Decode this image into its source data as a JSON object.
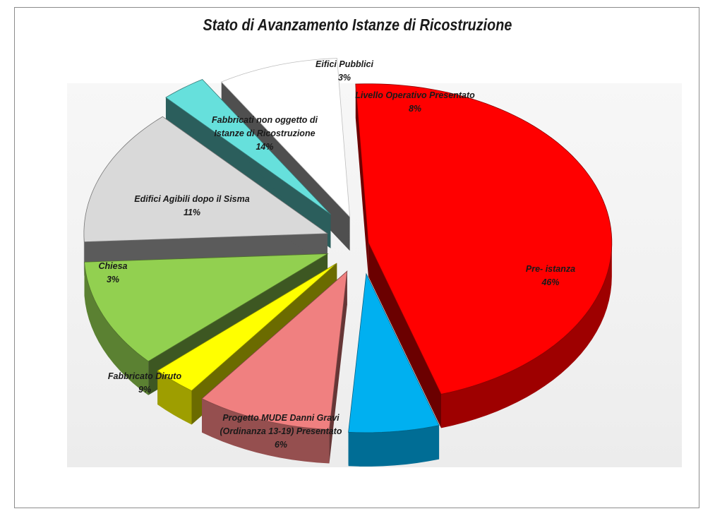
{
  "chart_data": {
    "type": "pie",
    "title": "Stato di Avanzamento Istanze di Ricostruzione",
    "slices": [
      {
        "label": "Pre- istanza",
        "value": 46,
        "value_label": "46%",
        "color": "#ff0000"
      },
      {
        "label": "Progetto MUDE Danni Gravi (Ordinanza 13-19) Presentato",
        "value": 6,
        "value_label": "6%",
        "color": "#00b0f0"
      },
      {
        "label": "Fabbricato Diruto",
        "value": 9,
        "value_label": "9%",
        "color": "#f08080"
      },
      {
        "label": "Chiesa",
        "value": 3,
        "value_label": "3%",
        "color": "#ffff00"
      },
      {
        "label": "Edifici Agibili dopo il Sisma",
        "value": 11,
        "value_label": "11%",
        "color": "#92d050"
      },
      {
        "label": "Fabbricati non oggetto di Istanze di Ricostruzione",
        "value": 14,
        "value_label": "14%",
        "color": "#d9d9d9"
      },
      {
        "label": "Eifici Pubblici",
        "value": 3,
        "value_label": "3%",
        "color": "#66e0dc"
      },
      {
        "label": "Livello Operativo Presentato",
        "value": 8,
        "value_label": "8%",
        "color": "#ffffff"
      }
    ],
    "exploded": true,
    "three_d": true,
    "legend": "none"
  }
}
